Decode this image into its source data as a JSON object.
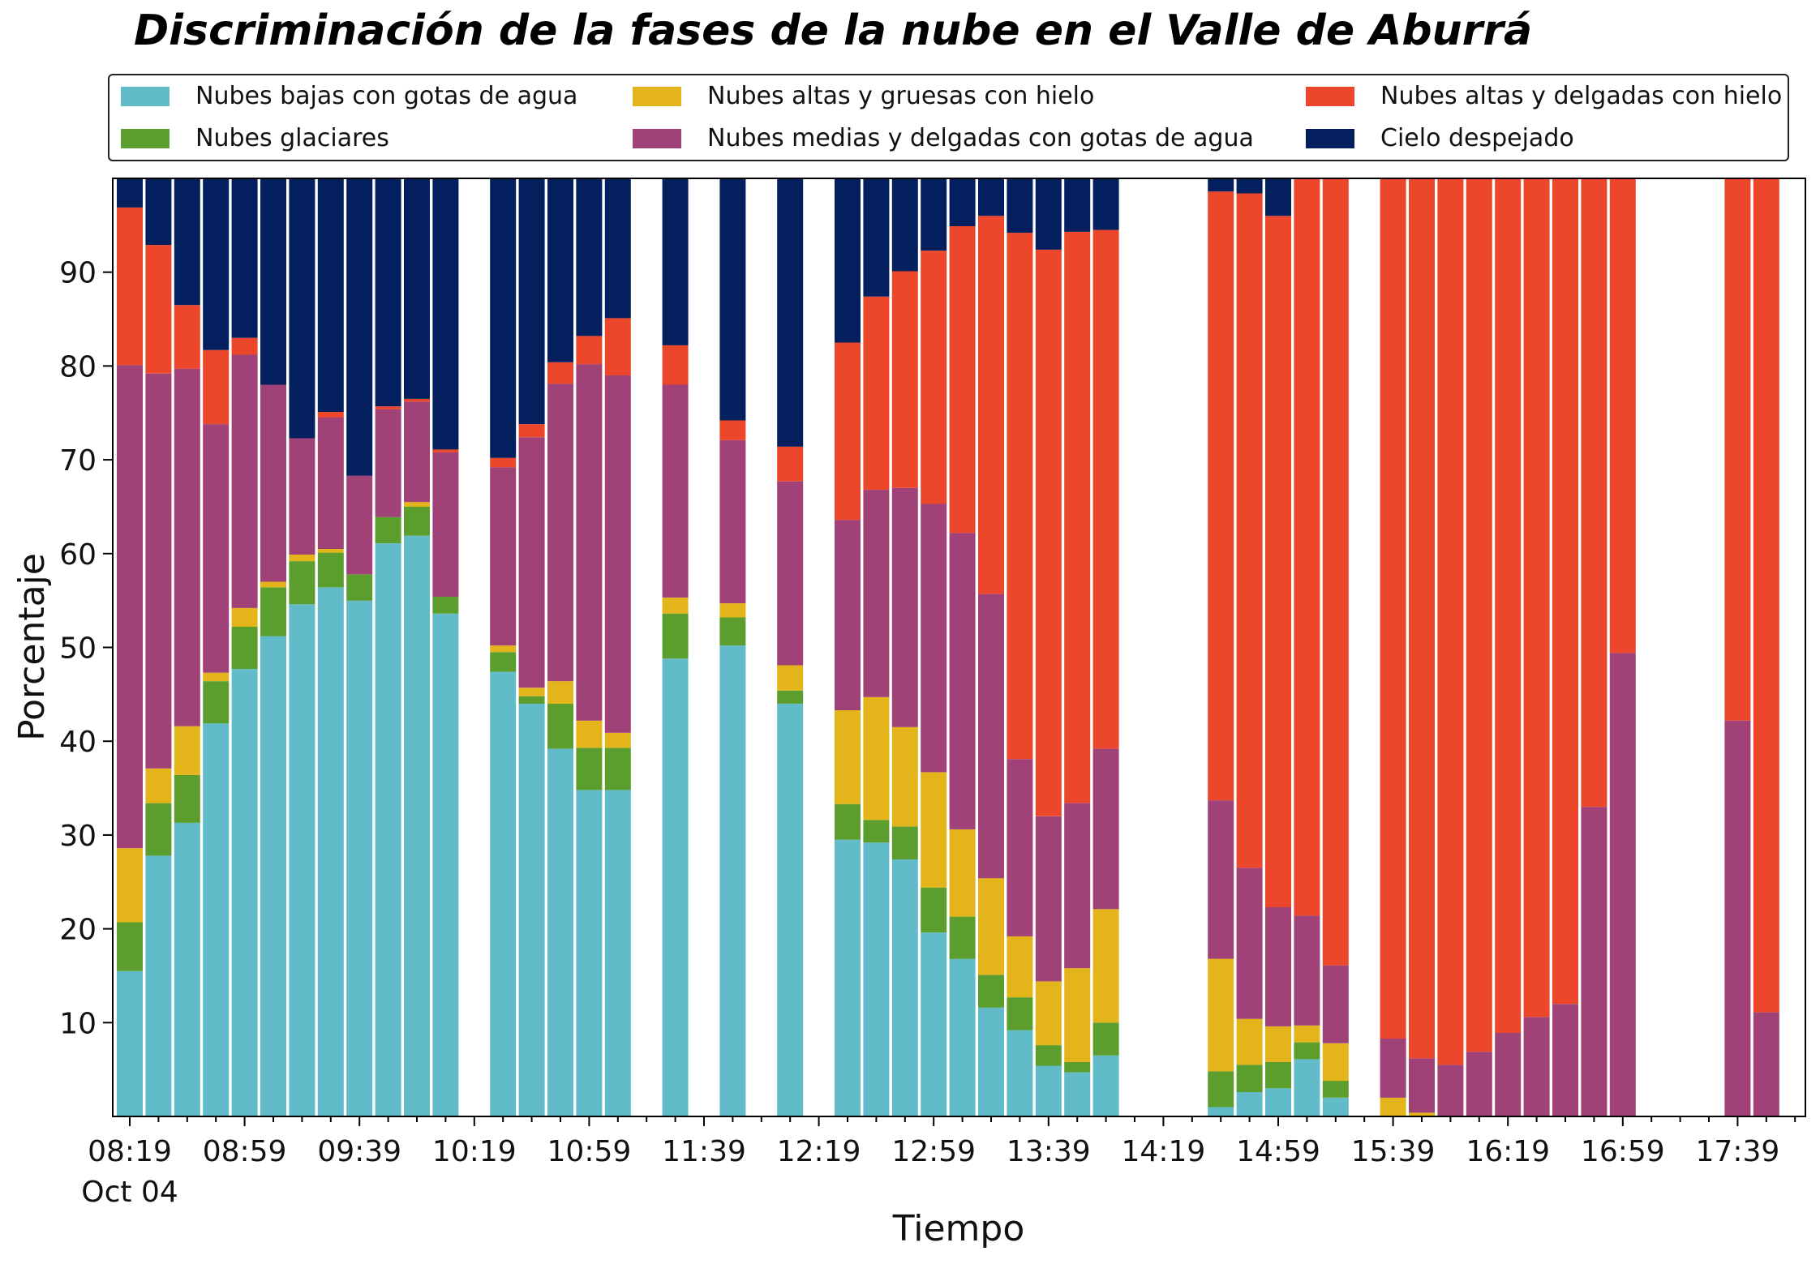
{
  "title": "Discriminación de la fases de la nube en el Valle de Aburrá",
  "chart_data": {
    "type": "bar",
    "stacked": true,
    "xlabel": "Tiempo",
    "ylabel": "Porcentaje",
    "ylim": [
      0,
      100
    ],
    "yticks": [
      10,
      20,
      30,
      40,
      50,
      60,
      70,
      80,
      90
    ],
    "x_tick_labels": [
      "08:19",
      "08:59",
      "09:39",
      "10:19",
      "10:59",
      "11:39",
      "12:19",
      "12:59",
      "13:39",
      "14:19",
      "14:59",
      "15:39",
      "16:19",
      "16:59",
      "17:39"
    ],
    "x_date_label": "Oct 04",
    "legend_position": "top",
    "series": [
      {
        "name": "Nubes bajas con gotas de agua",
        "color": "#62bbc8",
        "values": [
          15.5,
          27.8,
          31.3,
          41.9,
          47.7,
          51.2,
          54.6,
          56.4,
          55.0,
          61.1,
          61.9,
          53.6,
          null,
          47.4,
          44.0,
          39.2,
          34.8,
          34.8,
          null,
          48.8,
          null,
          50.2,
          null,
          44.0,
          null,
          29.5,
          29.2,
          27.4,
          19.6,
          16.8,
          11.6,
          9.2,
          5.4,
          4.7,
          6.5,
          null,
          null,
          null,
          1.0,
          2.6,
          3.0,
          6.1,
          2.0,
          null,
          0,
          0,
          0,
          0,
          0,
          0,
          0,
          0,
          0,
          null,
          null,
          null,
          0,
          0
        ]
      },
      {
        "name": "Nubes glaciares",
        "color": "#5b9e2d",
        "values": [
          5.2,
          5.6,
          5.1,
          4.5,
          4.5,
          5.2,
          4.6,
          3.7,
          2.8,
          2.8,
          3.1,
          1.8,
          null,
          2.1,
          0.8,
          4.8,
          4.5,
          4.5,
          null,
          4.8,
          null,
          3.0,
          null,
          1.4,
          null,
          3.8,
          2.4,
          3.5,
          4.8,
          4.5,
          3.5,
          3.5,
          2.2,
          1.1,
          3.5,
          null,
          null,
          null,
          3.8,
          2.9,
          2.8,
          1.8,
          1.8,
          null,
          0,
          0,
          0,
          0,
          0,
          0,
          0,
          0,
          0,
          null,
          null,
          null,
          0,
          0
        ]
      },
      {
        "name": "Nubes altas y gruesas con hielo",
        "color": "#e3b51a",
        "values": [
          7.9,
          3.7,
          5.2,
          0.9,
          2.0,
          0.6,
          0.7,
          0.4,
          0,
          0,
          0.5,
          0,
          null,
          0.7,
          0.9,
          2.4,
          2.9,
          1.6,
          null,
          1.7,
          null,
          1.5,
          null,
          2.7,
          null,
          10.0,
          13.1,
          10.6,
          12.3,
          9.3,
          10.3,
          6.5,
          6.8,
          10.0,
          12.1,
          null,
          null,
          null,
          12.0,
          4.9,
          3.8,
          1.8,
          4.0,
          null,
          2.0,
          0.4,
          0,
          0,
          0,
          0,
          0,
          0,
          0,
          null,
          null,
          null,
          0,
          0
        ]
      },
      {
        "name": "Nubes medias y delgadas con gotas de agua",
        "color": "#a04278",
        "values": [
          51.5,
          42.1,
          38.1,
          26.5,
          27.0,
          21.0,
          12.4,
          14.0,
          10.5,
          11.5,
          10.7,
          15.4,
          null,
          19.0,
          26.7,
          31.7,
          38.0,
          38.1,
          null,
          22.7,
          null,
          17.4,
          null,
          19.6,
          null,
          20.3,
          22.1,
          25.5,
          28.6,
          31.6,
          30.3,
          18.9,
          17.6,
          17.6,
          17.1,
          null,
          null,
          null,
          16.9,
          16.1,
          12.7,
          11.7,
          8.3,
          null,
          6.3,
          5.8,
          5.5,
          6.9,
          8.9,
          10.6,
          12.0,
          33.0,
          49.4,
          null,
          null,
          null,
          42.2,
          11.1
        ]
      },
      {
        "name": "Nubes altas y delgadas con hielo",
        "color": "#ec472b",
        "values": [
          16.8,
          13.7,
          6.8,
          7.9,
          1.8,
          0,
          0,
          0.6,
          0,
          0.3,
          0.3,
          0.3,
          null,
          1.0,
          1.4,
          2.3,
          3.0,
          6.1,
          null,
          4.2,
          null,
          2.1,
          null,
          3.7,
          null,
          18.9,
          20.6,
          23.1,
          27.0,
          32.7,
          40.3,
          56.1,
          60.4,
          60.9,
          55.3,
          null,
          null,
          null,
          64.9,
          71.9,
          73.7,
          78.6,
          83.9,
          null,
          91.7,
          93.8,
          94.5,
          93.1,
          91.1,
          89.4,
          88.0,
          67.0,
          50.6,
          null,
          null,
          null,
          57.8,
          88.9
        ]
      },
      {
        "name": "Cielo despejado",
        "color": "#031f5d",
        "values": [
          3.1,
          7.1,
          13.5,
          18.3,
          17.0,
          22.0,
          27.7,
          24.9,
          31.7,
          24.3,
          23.5,
          28.9,
          null,
          29.8,
          26.2,
          19.6,
          16.8,
          14.9,
          null,
          17.8,
          null,
          25.8,
          null,
          28.6,
          null,
          17.5,
          12.6,
          9.9,
          7.7,
          5.1,
          4.0,
          5.8,
          7.6,
          5.7,
          5.5,
          null,
          null,
          null,
          1.4,
          1.6,
          4.0,
          0,
          0,
          null,
          0,
          0,
          0,
          0,
          0,
          0,
          0,
          0,
          0,
          null,
          null,
          null,
          0,
          0
        ]
      }
    ]
  }
}
